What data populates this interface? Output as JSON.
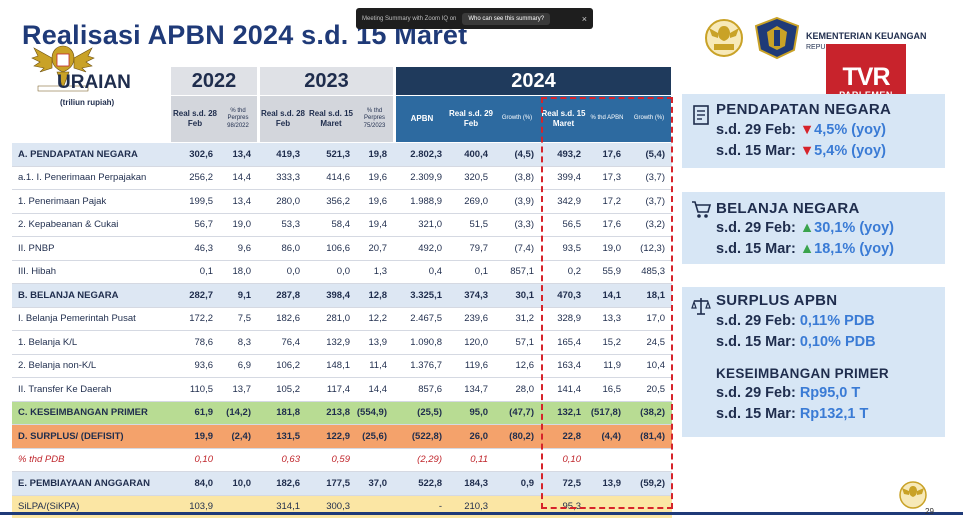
{
  "title": "Realisasi APBN 2024 s.d. 15 Maret",
  "zoom_bar": {
    "text": "Meeting Summary with Zoom IQ on",
    "question": "Who can see this summary?",
    "close": "×"
  },
  "ministry": {
    "name": "KEMENTERIAN KEUANGAN",
    "sub": "REPUBLIK INDONESIA"
  },
  "tv_logo": {
    "main": "TVR",
    "sub": "PARLEMEN"
  },
  "page_number": "29",
  "uraian": {
    "label": "URAIAN",
    "unit": "(triliun rupiah)"
  },
  "years": [
    "2022",
    "2023",
    "2024"
  ],
  "subheaders": {
    "y2022": [
      "Real s.d. 28 Feb",
      "% thd Perpres 98/2022"
    ],
    "y2023": [
      "Real s.d. 28 Feb",
      "Real s.d. 15 Maret",
      "% thd Perpres 75/2023"
    ],
    "y2024": [
      "APBN",
      "Real s.d. 29 Feb",
      "Growth (%)",
      "Real s.d. 15 Maret",
      "% thd APBN",
      "Growth (%)"
    ]
  },
  "rows": [
    {
      "label": "A.   PENDAPATAN NEGARA",
      "style": "bold bg-a",
      "v": [
        "302,6",
        "13,4",
        "419,3",
        "521,3",
        "19,8",
        "2.802,3",
        "400,4",
        "(4,5)",
        "493,2",
        "17,6",
        "(5,4)"
      ]
    },
    {
      "label": "a.1. I.    Penerimaan Perpajakan",
      "style": "",
      "v": [
        "256,2",
        "14,4",
        "333,3",
        "414,6",
        "19,6",
        "2.309,9",
        "320,5",
        "(3,8)",
        "399,4",
        "17,3",
        "(3,7)"
      ]
    },
    {
      "label": "          1.   Penerimaan Pajak",
      "style": "",
      "v": [
        "199,5",
        "13,4",
        "280,0",
        "356,2",
        "19,6",
        "1.988,9",
        "269,0",
        "(3,9)",
        "342,9",
        "17,2",
        "(3,7)"
      ]
    },
    {
      "label": "          2.   Kepabeanan & Cukai",
      "style": "",
      "v": [
        "56,7",
        "19,0",
        "53,3",
        "58,4",
        "19,4",
        "321,0",
        "51,5",
        "(3,3)",
        "56,5",
        "17,6",
        "(3,2)"
      ]
    },
    {
      "label": "      II.  PNBP",
      "style": "",
      "v": [
        "46,3",
        "9,6",
        "86,0",
        "106,6",
        "20,7",
        "492,0",
        "79,7",
        "(7,4)",
        "93,5",
        "19,0",
        "(12,3)"
      ]
    },
    {
      "label": "      III. Hibah",
      "style": "",
      "v": [
        "0,1",
        "18,0",
        "0,0",
        "0,0",
        "1,3",
        "0,4",
        "0,1",
        "857,1",
        "0,2",
        "55,9",
        "485,3"
      ]
    },
    {
      "label": "B.   BELANJA NEGARA",
      "style": "bold bg-a",
      "v": [
        "282,7",
        "9,1",
        "287,8",
        "398,4",
        "12,8",
        "3.325,1",
        "374,3",
        "30,1",
        "470,3",
        "14,1",
        "18,1"
      ]
    },
    {
      "label": "      I.   Belanja Pemerintah Pusat",
      "style": "",
      "v": [
        "172,2",
        "7,5",
        "182,6",
        "281,0",
        "12,2",
        "2.467,5",
        "239,6",
        "31,2",
        "328,9",
        "13,3",
        "17,0"
      ]
    },
    {
      "label": "          1.   Belanja K/L",
      "style": "",
      "v": [
        "78,6",
        "8,3",
        "76,4",
        "132,9",
        "13,9",
        "1.090,8",
        "120,0",
        "57,1",
        "165,4",
        "15,2",
        "24,5"
      ]
    },
    {
      "label": "          2.   Belanja non-K/L",
      "style": "",
      "v": [
        "93,6",
        "6,9",
        "106,2",
        "148,1",
        "11,4",
        "1.376,7",
        "119,6",
        "12,6",
        "163,4",
        "11,9",
        "10,4"
      ]
    },
    {
      "label": "      II.  Transfer Ke Daerah",
      "style": "",
      "v": [
        "110,5",
        "13,7",
        "105,2",
        "117,4",
        "14,4",
        "857,6",
        "134,7",
        "28,0",
        "141,4",
        "16,5",
        "20,5"
      ]
    },
    {
      "label": "C.   KESEIMBANGAN PRIMER",
      "style": "bold bg-green",
      "v": [
        "61,9",
        "(14,2)",
        "181,8",
        "213,8",
        "(554,9)",
        "(25,5)",
        "95,0",
        "(47,7)",
        "132,1",
        "(517,8)",
        "(38,2)"
      ]
    },
    {
      "label": "D.   SURPLUS/ (DEFISIT)",
      "style": "bold bg-orange",
      "v": [
        "19,9",
        "(2,4)",
        "131,5",
        "122,9",
        "(25,6)",
        "(522,8)",
        "26,0",
        "(80,2)",
        "22,8",
        "(4,4)",
        "(81,4)"
      ]
    },
    {
      "label": "      % thd PDB",
      "style": "italic-red",
      "v": [
        "0,10",
        "",
        "0,63",
        "0,59",
        "",
        "(2,29)",
        "0,11",
        "",
        "0,10",
        "",
        ""
      ]
    },
    {
      "label": "E.   PEMBIAYAAN ANGGARAN",
      "style": "bold bg-a",
      "v": [
        "84,0",
        "10,0",
        "182,6",
        "177,5",
        "37,0",
        "522,8",
        "184,3",
        "0,9",
        "72,5",
        "13,9",
        "(59,2)"
      ]
    },
    {
      "label": "SiLPA/(SiKPA)",
      "style": "bg-yellow",
      "v": [
        "103,9",
        "",
        "314,1",
        "300,3",
        "",
        "-",
        "210,3",
        "",
        "95,3",
        "",
        ""
      ]
    }
  ],
  "panels": {
    "pendapatan": {
      "title": "PENDAPATAN NEGARA",
      "l1_prefix": "s.d. 29 Feb:",
      "l1_arrow": "▼",
      "l1_value": "4,5% (yoy)",
      "l2_prefix": "s.d. 15 Mar:",
      "l2_arrow": "▼",
      "l2_value": "5,4% (yoy)"
    },
    "belanja": {
      "title": "BELANJA NEGARA",
      "l1_prefix": "s.d. 29 Feb:",
      "l1_arrow": "▲",
      "l1_value": "30,1% (yoy)",
      "l2_prefix": "s.d. 15 Mar:",
      "l2_arrow": "▲",
      "l2_value": "18,1% (yoy)"
    },
    "surplus": {
      "title": "SURPLUS APBN",
      "l1_prefix": "s.d. 29 Feb:",
      "l1_value": "0,11% PDB",
      "l2_prefix": "s.d. 15 Mar:",
      "l2_value": "0,10% PDB",
      "title2": "KESEIMBANGAN PRIMER",
      "l3_prefix": "s.d. 29 Feb:",
      "l3_value": "Rp95,0 T",
      "l4_prefix": "s.d. 15 Mar:",
      "l4_value": "Rp132,1 T"
    }
  },
  "colors": {
    "title_blue": "#1f3a78",
    "header_2024": "#1f3a5c",
    "down_red": "#d6232a",
    "up_green": "#3aa34c",
    "value_blue": "#3a7bd5"
  }
}
